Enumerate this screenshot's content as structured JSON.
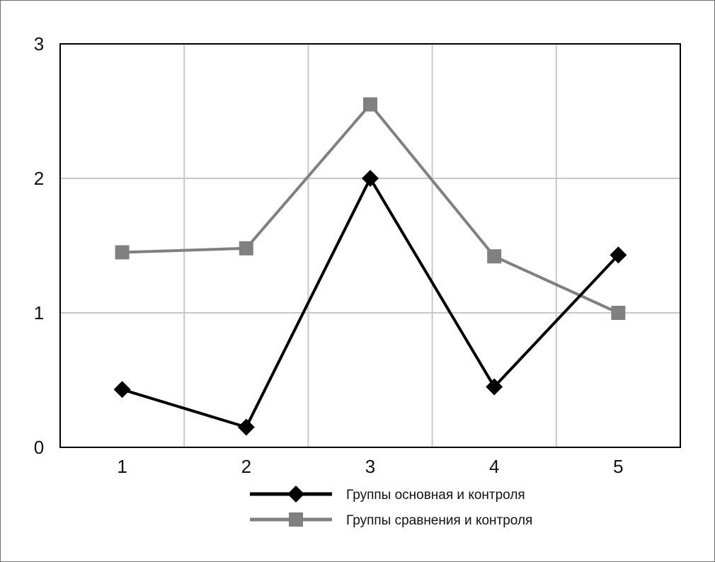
{
  "chart_data": {
    "type": "line",
    "x": [
      "1",
      "2",
      "3",
      "4",
      "5"
    ],
    "series": [
      {
        "name": "Группы основная и контроля",
        "values": [
          0.43,
          0.15,
          2.0,
          0.45,
          1.43
        ],
        "color": "#000000",
        "marker": "diamond"
      },
      {
        "name": "Группы сравнения и контроля",
        "values": [
          1.45,
          1.48,
          2.55,
          1.42,
          1.0
        ],
        "color": "#808080",
        "marker": "square"
      }
    ],
    "y_ticks": [
      "0",
      "1",
      "2",
      "3"
    ],
    "ylim": [
      0,
      3
    ],
    "grid": true,
    "legend_position": "bottom-center"
  }
}
